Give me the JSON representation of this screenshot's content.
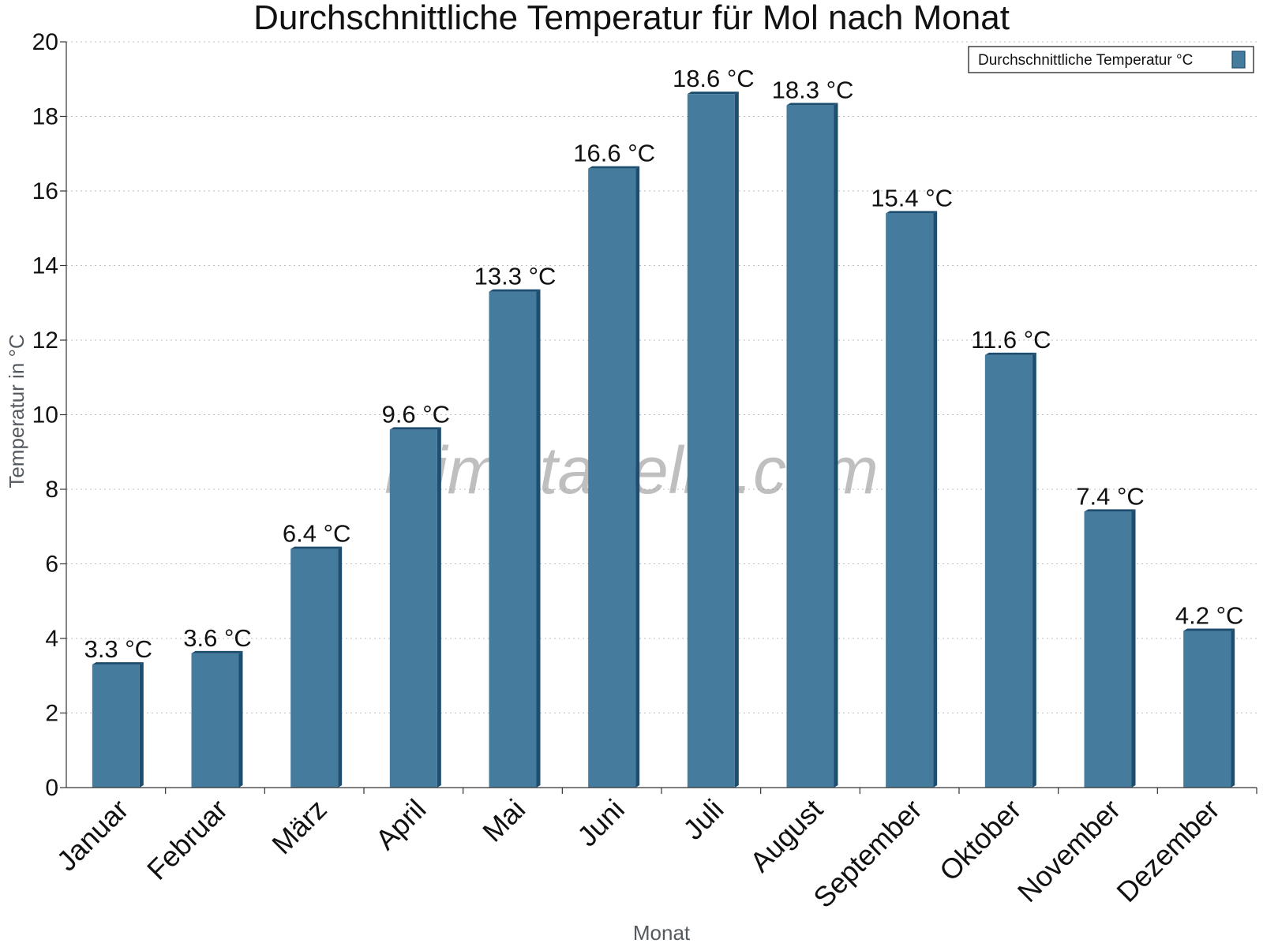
{
  "chart_data": {
    "type": "bar",
    "title": "Durchschnittliche Temperatur für Mol nach Monat",
    "xlabel": "Monat",
    "ylabel": "Temperatur in °C",
    "ylim": [
      0,
      20
    ],
    "yticks": [
      0,
      2,
      4,
      6,
      8,
      10,
      12,
      14,
      16,
      18,
      20
    ],
    "grid": "horizontal dotted",
    "legend_position": "top-right",
    "categories": [
      "Januar",
      "Februar",
      "März",
      "April",
      "Mai",
      "Juni",
      "Juli",
      "August",
      "September",
      "Oktober",
      "November",
      "Dezember"
    ],
    "series": [
      {
        "name": "Durchschnittliche Temperatur °C",
        "values": [
          3.3,
          3.6,
          6.4,
          9.6,
          13.3,
          16.6,
          18.6,
          18.3,
          15.4,
          11.6,
          7.4,
          4.2
        ],
        "labels": [
          "3.3 °C",
          "3.6 °C",
          "6.4 °C",
          "9.6 °C",
          "13.3 °C",
          "16.6 °C",
          "18.6 °C",
          "18.3 °C",
          "15.4 °C",
          "11.6 °C",
          "7.4 °C",
          "4.2 °C"
        ],
        "color": "#457b9d",
        "edge_color": "#1d4e6f"
      }
    ],
    "watermark": "klimatabelle.com"
  }
}
